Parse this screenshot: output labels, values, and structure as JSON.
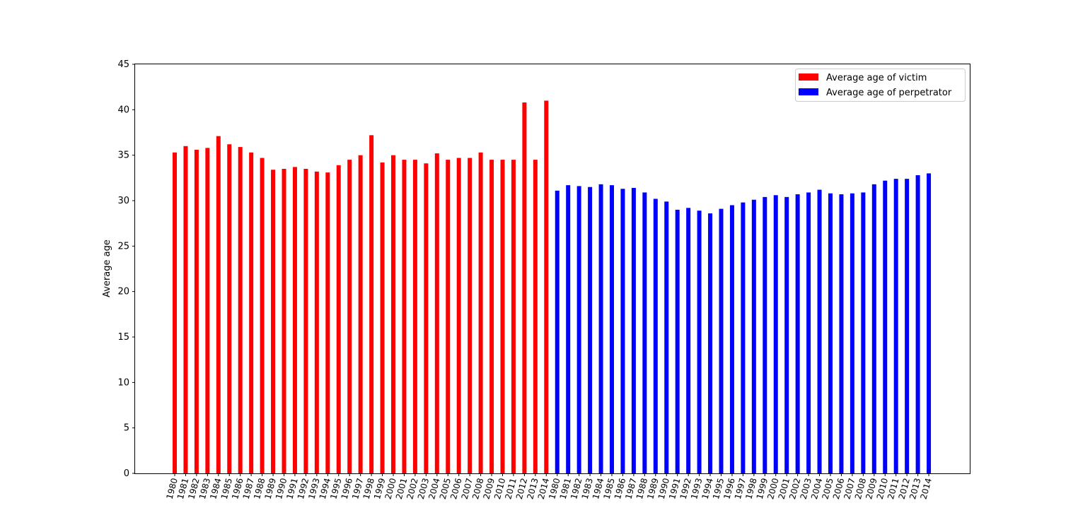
{
  "chart_data": {
    "type": "bar",
    "ylabel": "Average age",
    "xlabel": "",
    "ylim": [
      0,
      45
    ],
    "yticks": [
      0,
      5,
      10,
      15,
      20,
      25,
      30,
      35,
      40,
      45
    ],
    "grid": false,
    "legend_position": "top-right",
    "series": [
      {
        "name": "Average age of victim",
        "color": "#ff0000",
        "categories": [
          "1980",
          "1981",
          "1982",
          "1983",
          "1984",
          "1985",
          "1986",
          "1987",
          "1988",
          "1989",
          "1990",
          "1991",
          "1992",
          "1993",
          "1994",
          "1995",
          "1996",
          "1997",
          "1998",
          "1999",
          "2000",
          "2001",
          "2002",
          "2003",
          "2004",
          "2005",
          "2006",
          "2007",
          "2008",
          "2009",
          "2010",
          "2011",
          "2012",
          "2013",
          "2014"
        ],
        "values": [
          35.3,
          36.0,
          35.6,
          35.8,
          37.1,
          36.2,
          35.9,
          35.3,
          34.7,
          33.4,
          33.5,
          33.7,
          33.5,
          33.2,
          33.1,
          33.9,
          34.5,
          35.0,
          37.2,
          34.2,
          35.0,
          34.5,
          34.5,
          34.1,
          35.2,
          34.5,
          34.7,
          34.7,
          35.3,
          34.5,
          34.5,
          34.5,
          40.8,
          34.5,
          41.0
        ]
      },
      {
        "name": "Average age of perpetrator",
        "color": "#0000ff",
        "categories": [
          "1980",
          "1981",
          "1982",
          "1983",
          "1984",
          "1985",
          "1986",
          "1987",
          "1988",
          "1989",
          "1990",
          "1991",
          "1992",
          "1993",
          "1994",
          "1995",
          "1996",
          "1997",
          "1998",
          "1999",
          "2000",
          "2001",
          "2002",
          "2003",
          "2004",
          "2005",
          "2006",
          "2007",
          "2008",
          "2009",
          "2010",
          "2011",
          "2012",
          "2013",
          "2014"
        ],
        "values": [
          31.1,
          31.7,
          31.6,
          31.5,
          31.8,
          31.7,
          31.3,
          31.4,
          30.9,
          30.2,
          29.9,
          29.0,
          29.2,
          28.9,
          28.6,
          29.1,
          29.5,
          29.8,
          30.1,
          30.4,
          30.6,
          30.4,
          30.7,
          30.9,
          31.2,
          30.8,
          30.7,
          30.8,
          30.9,
          31.8,
          32.2,
          32.4,
          32.4,
          32.8,
          33.0
        ]
      }
    ]
  }
}
